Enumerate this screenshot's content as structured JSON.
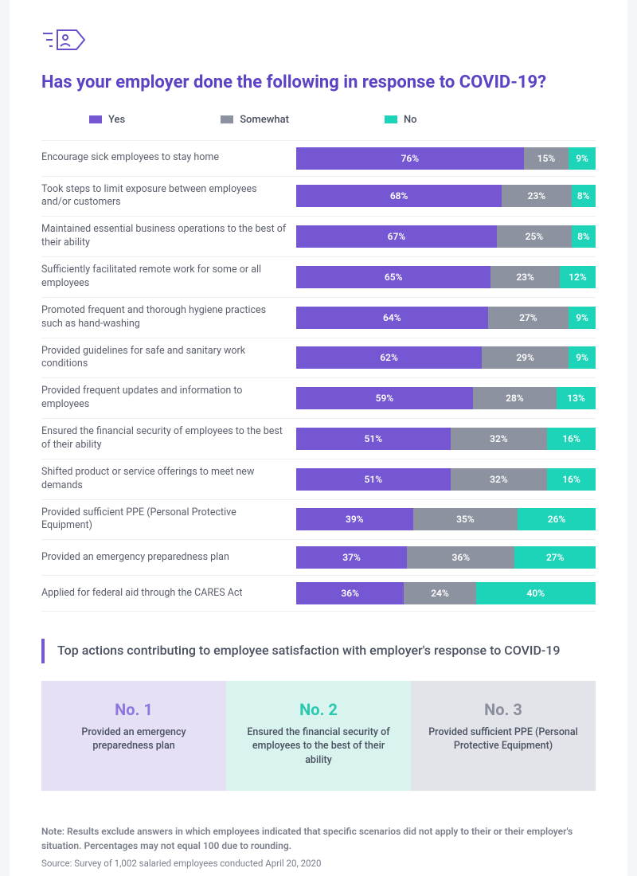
{
  "colors": {
    "yes": "#7557d3",
    "somewhat": "#8d92a0",
    "no": "#1ed4b8",
    "title": "#5e42c4",
    "text": "#4a5160",
    "label": "#5a5f6d",
    "note": "#7a7f8c",
    "callout_border": "#7557d3",
    "card1_bg": "#e6e0f5",
    "card1_fg": "#8f78dd",
    "card2_bg": "#d9f3ee",
    "card2_fg": "#29c9af",
    "card3_bg": "#e2e4e9",
    "card3_fg": "#8a8f9b",
    "icon": "#6a4ec9",
    "border": "#eceef0"
  },
  "title": "Has your employer done the following in response to COVID-19?",
  "legend": {
    "yes": "Yes",
    "somewhat": "Somewhat",
    "no": "No"
  },
  "rows": [
    {
      "label": "Encourage sick employees to stay home",
      "yes": 76,
      "somewhat": 15,
      "no": 9
    },
    {
      "label": "Took steps to limit exposure between employees and/or customers",
      "yes": 68,
      "somewhat": 23,
      "no": 8
    },
    {
      "label": "Maintained essential business operations to the best of their ability",
      "yes": 67,
      "somewhat": 25,
      "no": 8
    },
    {
      "label": "Sufficiently facilitated remote work for some or all employees",
      "yes": 65,
      "somewhat": 23,
      "no": 12
    },
    {
      "label": "Promoted frequent and thorough hygiene practices such as hand-washing",
      "yes": 64,
      "somewhat": 27,
      "no": 9
    },
    {
      "label": "Provided guidelines for safe and sanitary work conditions",
      "yes": 62,
      "somewhat": 29,
      "no": 9
    },
    {
      "label": "Provided frequent updates and information to employees",
      "yes": 59,
      "somewhat": 28,
      "no": 13
    },
    {
      "label": "Ensured the financial security of employees to the best of their ability",
      "yes": 51,
      "somewhat": 32,
      "no": 16
    },
    {
      "label": "Shifted product or service offerings to meet new demands",
      "yes": 51,
      "somewhat": 32,
      "no": 16
    },
    {
      "label": "Provided sufficient PPE (Personal Protective Equipment)",
      "yes": 39,
      "somewhat": 35,
      "no": 26
    },
    {
      "label": "Provided an emergency preparedness plan",
      "yes": 37,
      "somewhat": 36,
      "no": 27
    },
    {
      "label": "Applied for federal aid through the CARES Act",
      "yes": 36,
      "somewhat": 24,
      "no": 40
    }
  ],
  "callout": "Top actions contributing to employee satisfaction with employer's response to COVID-19",
  "top3": [
    {
      "rank": "No. 1",
      "label": "Provided an emergency preparedness plan"
    },
    {
      "rank": "No. 2",
      "label": "Ensured the financial security of employees to the best of their ability"
    },
    {
      "rank": "No. 3",
      "label": "Provided sufficient PPE (Personal Protective Equipment)"
    }
  ],
  "note": "Note: Results exclude answers in which employees indicated that specific scenarios did not apply to their or their employer's situation. Percentages may not equal 100 due to rounding.",
  "source": "Source: Survey of 1,002 salaried employees conducted April 20, 2020"
}
